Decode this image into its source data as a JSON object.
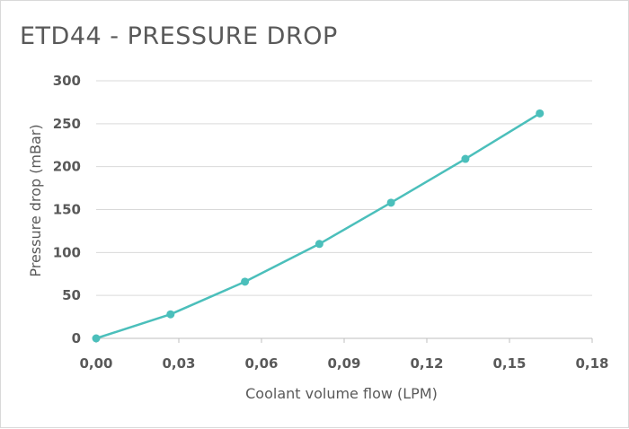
{
  "chart_data": {
    "type": "line",
    "title": "ETD44 - PRESSURE DROP",
    "xlabel": "Coolant volume flow (LPM)",
    "ylabel": "Pressure drop (mBar)",
    "xlim": [
      0,
      0.18
    ],
    "ylim": [
      0,
      300
    ],
    "x_ticks": [
      "0,00",
      "0,03",
      "0,06",
      "0,09",
      "0,12",
      "0,15",
      "0,18"
    ],
    "y_ticks": [
      "0",
      "50",
      "100",
      "150",
      "200",
      "250",
      "300"
    ],
    "grid": true,
    "legend": "none",
    "series": [
      {
        "color": "#4bbfbb",
        "x": [
          0.0,
          0.027,
          0.054,
          0.081,
          0.107,
          0.134,
          0.161
        ],
        "y": [
          0,
          28,
          66,
          110,
          158,
          209,
          262
        ]
      }
    ]
  }
}
